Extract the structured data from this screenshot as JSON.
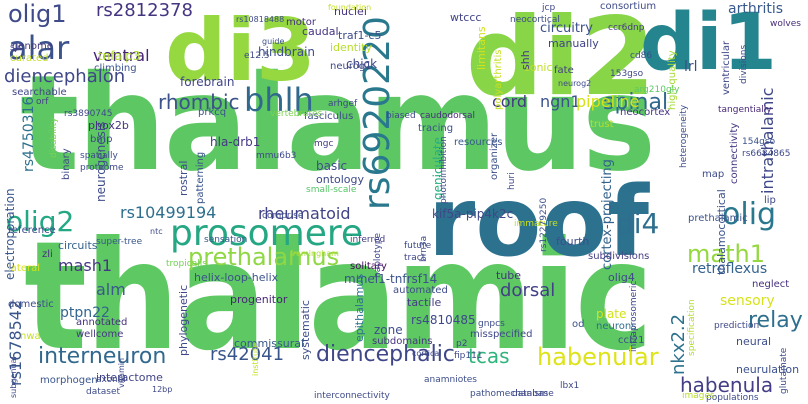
{
  "words": [
    {
      "text": "thalamus",
      "color": "#5dc863"
    },
    {
      "text": "thalamic",
      "color": "#5ec962"
    },
    {
      "text": "roof",
      "color": "#2c728e"
    },
    {
      "text": "di2",
      "color": "#89d548"
    },
    {
      "text": "di3",
      "color": "#95d840"
    },
    {
      "text": "di1",
      "color": "#25858e"
    },
    {
      "text": "prosomere",
      "color": "#26a784"
    },
    {
      "text": "rs6920220",
      "color": "#2a788e"
    },
    {
      "text": "alar",
      "color": "#3b528b"
    },
    {
      "text": "bhlh",
      "color": "#31688e"
    },
    {
      "text": "olig2",
      "color": "#22a884"
    },
    {
      "text": "olig1",
      "color": "#3e4a89"
    },
    {
      "text": "olig",
      "color": "#2a788e"
    },
    {
      "text": "prethalamus",
      "color": "#8fd744"
    },
    {
      "text": "di4",
      "color": "#2e6e8e"
    },
    {
      "text": "math1",
      "color": "#95d840"
    },
    {
      "text": "interneuron",
      "color": "#31688e"
    },
    {
      "text": "habenular",
      "color": "#dde318"
    },
    {
      "text": "diencephalic",
      "color": "#3f4788"
    },
    {
      "text": "habenula",
      "color": "#433e85"
    },
    {
      "text": "rs42041",
      "color": "#39568c"
    },
    {
      "text": "tcas",
      "color": "#2fb47c"
    },
    {
      "text": "relay",
      "color": "#2e6f8e"
    },
    {
      "text": "spinal",
      "color": "#31688e"
    },
    {
      "text": "rhombic",
      "color": "#3b528b"
    },
    {
      "text": "diencephalon",
      "color": "#3f4788"
    },
    {
      "text": "rheumatoid",
      "color": "#404387"
    },
    {
      "text": "rs10499194",
      "color": "#2e6f8e"
    },
    {
      "text": "rs2812378",
      "color": "#453581"
    },
    {
      "text": "ventral",
      "color": "#482475"
    },
    {
      "text": "cord",
      "color": "#443983"
    },
    {
      "text": "ngn1",
      "color": "#3b518b"
    },
    {
      "text": "pipeline",
      "color": "#d5e21a"
    },
    {
      "text": "dorsal",
      "color": "#423f85"
    },
    {
      "text": "mash1",
      "color": "#453781"
    },
    {
      "text": "nkx2.2",
      "color": "#2c718e"
    },
    {
      "text": "ptpn22",
      "color": "#32658e"
    },
    {
      "text": "alm",
      "color": "#38598c"
    },
    {
      "text": "intrathalamic",
      "color": "#3f4889"
    },
    {
      "text": "rs1678542",
      "color": "#39568c"
    },
    {
      "text": "rs4750316",
      "color": "#2d708e"
    },
    {
      "text": "retroflexus",
      "color": "#33628d"
    },
    {
      "text": "sensory",
      "color": "#d8e219"
    },
    {
      "text": "kif5a-pip4k2c",
      "color": "#3f4788"
    },
    {
      "text": "circuitry",
      "color": "#3c4f8a"
    },
    {
      "text": "arthritis",
      "color": "#38598c"
    },
    {
      "text": "forebrain",
      "color": "#404588"
    },
    {
      "text": "tnfaip3",
      "color": "#addc30"
    },
    {
      "text": "hindbrain",
      "color": "#3d4d8a"
    },
    {
      "text": "chick",
      "color": "#3f4788"
    },
    {
      "text": "neurogenesis",
      "color": "#3e4c8a"
    },
    {
      "text": "hla-drb1",
      "color": "#453882"
    },
    {
      "text": "phox2b",
      "color": "#46327e"
    },
    {
      "text": "electroporation",
      "color": "#39568c"
    },
    {
      "text": "thalamocortical",
      "color": "#3a538b"
    },
    {
      "text": "cortex-projecting",
      "color": "#33638d"
    },
    {
      "text": "geniculate",
      "color": "#26ad81"
    },
    {
      "text": "circuits",
      "color": "#33628d"
    },
    {
      "text": "rostral",
      "color": "#3d4e8a"
    },
    {
      "text": "basic",
      "color": "#3e4c8a"
    },
    {
      "text": "ontology",
      "color": "#3e4989"
    },
    {
      "text": "patterning",
      "color": "#3a548c"
    },
    {
      "text": "solitary",
      "color": "#460a5d"
    },
    {
      "text": "mmel1-tnfrsf14",
      "color": "#3b528b"
    },
    {
      "text": "tube",
      "color": "#46337f"
    },
    {
      "text": "olig4",
      "color": "#3e4989"
    },
    {
      "text": "automated",
      "color": "#3e4c8a"
    },
    {
      "text": "tactile",
      "color": "#433e85"
    },
    {
      "text": "rs4810485",
      "color": "#3e4989"
    },
    {
      "text": "helix-loop-helix",
      "color": "#3b518b"
    },
    {
      "text": "phylogenetic",
      "color": "#3f4889"
    },
    {
      "text": "progenitor",
      "color": "#482576"
    },
    {
      "text": "systematic",
      "color": "#3d4e8a"
    },
    {
      "text": "epithalamus",
      "color": "#2c728e"
    },
    {
      "text": "commissural",
      "color": "#38598c"
    },
    {
      "text": "zone",
      "color": "#3d4d8a"
    },
    {
      "text": "subdomains",
      "color": "#463480"
    },
    {
      "text": "plate",
      "color": "#d2e21b"
    },
    {
      "text": "neurons",
      "color": "#2e6e8e"
    },
    {
      "text": "ccl21",
      "color": "#3d4d8a"
    },
    {
      "text": "neural",
      "color": "#3d4e8a"
    },
    {
      "text": "neurulation",
      "color": "#3b528b"
    },
    {
      "text": "interactome",
      "color": "#414487"
    },
    {
      "text": "morphogen",
      "color": "#39558c"
    },
    {
      "text": "annotated",
      "color": "#46307e"
    },
    {
      "text": "wellcome",
      "color": "#453882"
    },
    {
      "text": "domestic",
      "color": "#3d4d8a"
    },
    {
      "text": "mash1",
      "color": "#453781"
    },
    {
      "text": "zli",
      "color": "#46317e"
    },
    {
      "text": "lateral",
      "color": "#dae319"
    },
    {
      "text": "prethalamic",
      "color": "#3a538b"
    },
    {
      "text": "fourth",
      "color": "#3d4e8a"
    },
    {
      "text": "subdivisions",
      "color": "#433d84"
    },
    {
      "text": "lrl",
      "color": "#3e4c8a"
    },
    {
      "text": "manually",
      "color": "#404588"
    },
    {
      "text": "sonic",
      "color": "#c0df25"
    },
    {
      "text": "fate",
      "color": "#423f85"
    },
    {
      "text": "shh",
      "color": "#443983"
    },
    {
      "text": "nuclei",
      "color": "#46327e"
    },
    {
      "text": "identity",
      "color": "#b8de29"
    },
    {
      "text": "traf1-c5",
      "color": "#3d4d8a"
    },
    {
      "text": "caudal",
      "color": "#463480"
    },
    {
      "text": "motor",
      "color": "#46307e"
    },
    {
      "text": "neurog1",
      "color": "#3e4989"
    },
    {
      "text": "wtccc",
      "color": "#404387"
    },
    {
      "text": "genome",
      "color": "#453781"
    },
    {
      "text": "curated",
      "color": "#c2df23"
    },
    {
      "text": "searchable",
      "color": "#404588"
    },
    {
      "text": "climbing",
      "color": "#3a548c"
    },
    {
      "text": "reference",
      "color": "#3e4a89"
    },
    {
      "text": "binary",
      "color": "#3f4889"
    },
    {
      "text": "bmp",
      "color": "#3f4788"
    },
    {
      "text": "prkcq",
      "color": "#3a538b"
    },
    {
      "text": "fasciculus",
      "color": "#3e4c8a"
    },
    {
      "text": "tracing",
      "color": "#3d4e8a"
    },
    {
      "text": "resources",
      "color": "#38588c"
    },
    {
      "text": "organizer",
      "color": "#3b518b"
    },
    {
      "text": "trust",
      "color": "#b5de2b"
    },
    {
      "text": "neocortex",
      "color": "#463480"
    },
    {
      "text": "connectivity",
      "color": "#453882"
    },
    {
      "text": "map",
      "color": "#3e4a89"
    },
    {
      "text": "lip",
      "color": "#3f4788"
    },
    {
      "text": "neglect",
      "color": "#472f7d"
    },
    {
      "text": "consortium",
      "color": "#3e4c8a"
    },
    {
      "text": "high-quality",
      "color": "#a5db36"
    },
    {
      "text": "polyarthritis",
      "color": "#c5e021"
    },
    {
      "text": "limitans",
      "color": "#d2e21b"
    },
    {
      "text": "ventricular",
      "color": "#3f4788"
    },
    {
      "text": "divisions",
      "color": "#3e4a89"
    },
    {
      "text": "wolves",
      "color": "#472d7b"
    },
    {
      "text": "cd86",
      "color": "#3d4d8a"
    },
    {
      "text": "ccr6dnp",
      "color": "#433d84"
    },
    {
      "text": "153gso",
      "color": "#3f4889"
    },
    {
      "text": "arg210gly",
      "color": "#5cc863"
    },
    {
      "text": "tangentially",
      "color": "#482878"
    },
    {
      "text": "154gso",
      "color": "#3b528b"
    },
    {
      "text": "rs6684865",
      "color": "#3e4a89"
    },
    {
      "text": "heterogeneity",
      "color": "#3d4e8a"
    },
    {
      "text": "sjc",
      "color": "#3f4788"
    },
    {
      "text": "orf",
      "color": "#433e85"
    },
    {
      "text": "rs3890745",
      "color": "#3f4889"
    },
    {
      "text": "disability",
      "color": "#7ad151"
    },
    {
      "text": "spatially",
      "color": "#3e4c8a"
    },
    {
      "text": "proteome",
      "color": "#3f4889"
    },
    {
      "text": "mgc",
      "color": "#443983"
    },
    {
      "text": "mmu6b3",
      "color": "#3e4a89"
    },
    {
      "text": "small-scale",
      "color": "#56c667"
    },
    {
      "text": "arhgef",
      "color": "#3f4788"
    },
    {
      "text": "vertebrates",
      "color": "#7ad151"
    },
    {
      "text": "biased",
      "color": "#3e4989"
    },
    {
      "text": "caudodorsal",
      "color": "#472d7b"
    },
    {
      "text": "photoinhibition",
      "color": "#3e4a89"
    },
    {
      "text": "huri",
      "color": "#3f4889"
    },
    {
      "text": "comprise",
      "color": "#3e4c8a"
    },
    {
      "text": "super-tree",
      "color": "#39568c"
    },
    {
      "text": "sensation",
      "color": "#39568c"
    },
    {
      "text": "inferred",
      "color": "#433d84"
    },
    {
      "text": "future",
      "color": "#3e4a89"
    },
    {
      "text": "tract",
      "color": "#3f4788"
    },
    {
      "text": "immature",
      "color": "#c7e020"
    },
    {
      "text": "rs12279250",
      "color": "#3d4e8a"
    },
    {
      "text": "framingham",
      "color": "#a8db34"
    },
    {
      "text": "tropicalis",
      "color": "#75d054"
    },
    {
      "text": "haplotype",
      "color": "#3f4788"
    },
    {
      "text": "brn3a",
      "color": "#3e4c8a"
    },
    {
      "text": "gnpcs",
      "color": "#3e4a89"
    },
    {
      "text": "prediction",
      "color": "#3f4889"
    },
    {
      "text": "intraprosomeric",
      "color": "#3f4788"
    },
    {
      "text": "specification",
      "color": "#b2dd2d"
    },
    {
      "text": "misspecified",
      "color": "#3f4889"
    },
    {
      "text": "od",
      "color": "#3b528b"
    },
    {
      "text": "p2",
      "color": "#3f4788"
    },
    {
      "text": "cortical",
      "color": "#3e4c8a"
    },
    {
      "text": "fip111",
      "color": "#3e4a89"
    },
    {
      "text": "lbx1",
      "color": "#3e4989"
    },
    {
      "text": "anamniotes",
      "color": "#3d4e8a"
    },
    {
      "text": "pathomechanism",
      "color": "#3d4e8a"
    },
    {
      "text": "interconnectivity",
      "color": "#3e4a89"
    },
    {
      "text": "dataset",
      "color": "#3e4c8a"
    },
    {
      "text": "axonal",
      "color": "#3e4989"
    },
    {
      "text": "database",
      "color": "#3f4788"
    },
    {
      "text": "populations",
      "color": "#3e4c8a"
    },
    {
      "text": "images",
      "color": "#b8de29"
    },
    {
      "text": "glutamate",
      "color": "#3e4c8a"
    },
    {
      "text": "nwa",
      "color": "#c5e021"
    },
    {
      "text": "subgenual",
      "color": "#3e4a89"
    },
    {
      "text": "vitamin",
      "color": "#3e4c8a"
    },
    {
      "text": "foundation",
      "color": "#c7e020"
    },
    {
      "text": "rs10818488",
      "color": "#3e4989"
    },
    {
      "text": "guide",
      "color": "#3d4e8a"
    },
    {
      "text": "e12.5",
      "color": "#3e4c8a"
    },
    {
      "text": "jcp",
      "color": "#3f4788"
    },
    {
      "text": "neocortical",
      "color": "#3e4a89"
    },
    {
      "text": "neurog2",
      "color": "#3e4989"
    },
    {
      "text": "ntc",
      "color": "#3e4989"
    },
    {
      "text": "12bp",
      "color": "#3f4788"
    },
    {
      "text": "institute",
      "color": "#c5e021"
    }
  ]
}
